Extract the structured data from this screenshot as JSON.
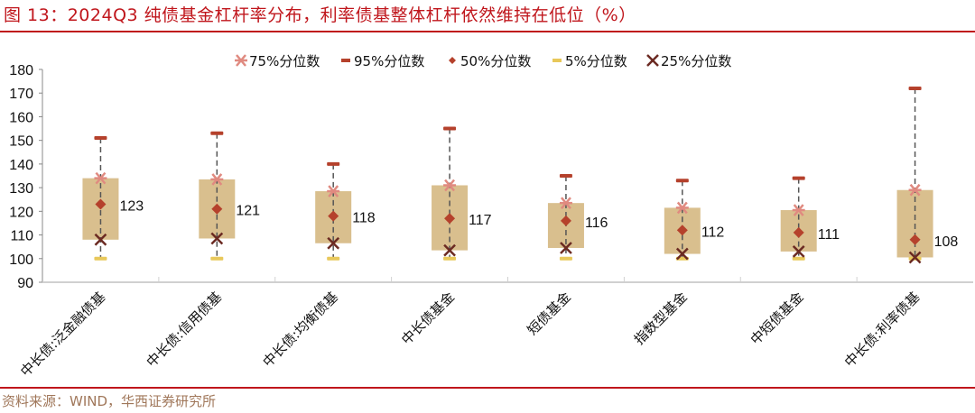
{
  "title": "图 13：2024Q3 纯债基金杠杆率分布，利率债基整体杠杆依然维持在低位（%）",
  "source": "资料来源：WIND，华西证券研究所",
  "colors": {
    "title_red": "#c0161c",
    "box_fill": "#d9bf8e",
    "p75": "#e08a80",
    "p95": "#b5412c",
    "p50": "#b5412c",
    "p5": "#e8c85a",
    "p25": "#6b2a22",
    "whisker": "#555555",
    "axis": "#d0d0d0"
  },
  "legend": [
    {
      "key": "p75",
      "label": "75%分位数",
      "icon": "asterisk-icon"
    },
    {
      "key": "p95",
      "label": "95%分位数",
      "icon": "dash-icon"
    },
    {
      "key": "p50",
      "label": "50%分位数",
      "icon": "diamond-icon"
    },
    {
      "key": "p5",
      "label": "5%分位数",
      "icon": "dash-icon"
    },
    {
      "key": "p25",
      "label": "25%分位数",
      "icon": "x-icon"
    }
  ],
  "chart_data": {
    "type": "box",
    "title": "图 13：2024Q3 纯债基金杠杆率分布，利率债基整体杠杆依然维持在低位（%）",
    "xlabel": "",
    "ylabel": "",
    "ylim": [
      90,
      180
    ],
    "yticks": [
      90,
      100,
      110,
      120,
      130,
      140,
      150,
      160,
      170,
      180
    ],
    "grid": false,
    "legend_position": "top",
    "categories": [
      "中长债:泛金融债基",
      "中长债:信用债基",
      "中长债:均衡债基",
      "中长债基金",
      "短债基金",
      "指数型基金",
      "中短债基金",
      "中长债:利率债基"
    ],
    "series": [
      {
        "name": "95%分位数",
        "values": [
          151,
          153,
          140,
          155,
          135,
          133,
          134,
          172
        ]
      },
      {
        "name": "75%分位数",
        "values": [
          134,
          133.5,
          128.5,
          131,
          123.5,
          121.5,
          120.5,
          129
        ]
      },
      {
        "name": "50%分位数",
        "values": [
          123,
          121,
          118,
          117,
          116,
          112,
          111,
          108
        ]
      },
      {
        "name": "25%分位数",
        "values": [
          108,
          108.5,
          106.5,
          103.5,
          104.5,
          102,
          103,
          100.5
        ]
      },
      {
        "name": "5%分位数",
        "values": [
          100,
          100,
          100,
          100,
          100,
          100,
          100,
          100
        ]
      }
    ],
    "data_labels": [
      "123",
      "121",
      "118",
      "117",
      "116",
      "112",
      "111",
      "108"
    ]
  }
}
